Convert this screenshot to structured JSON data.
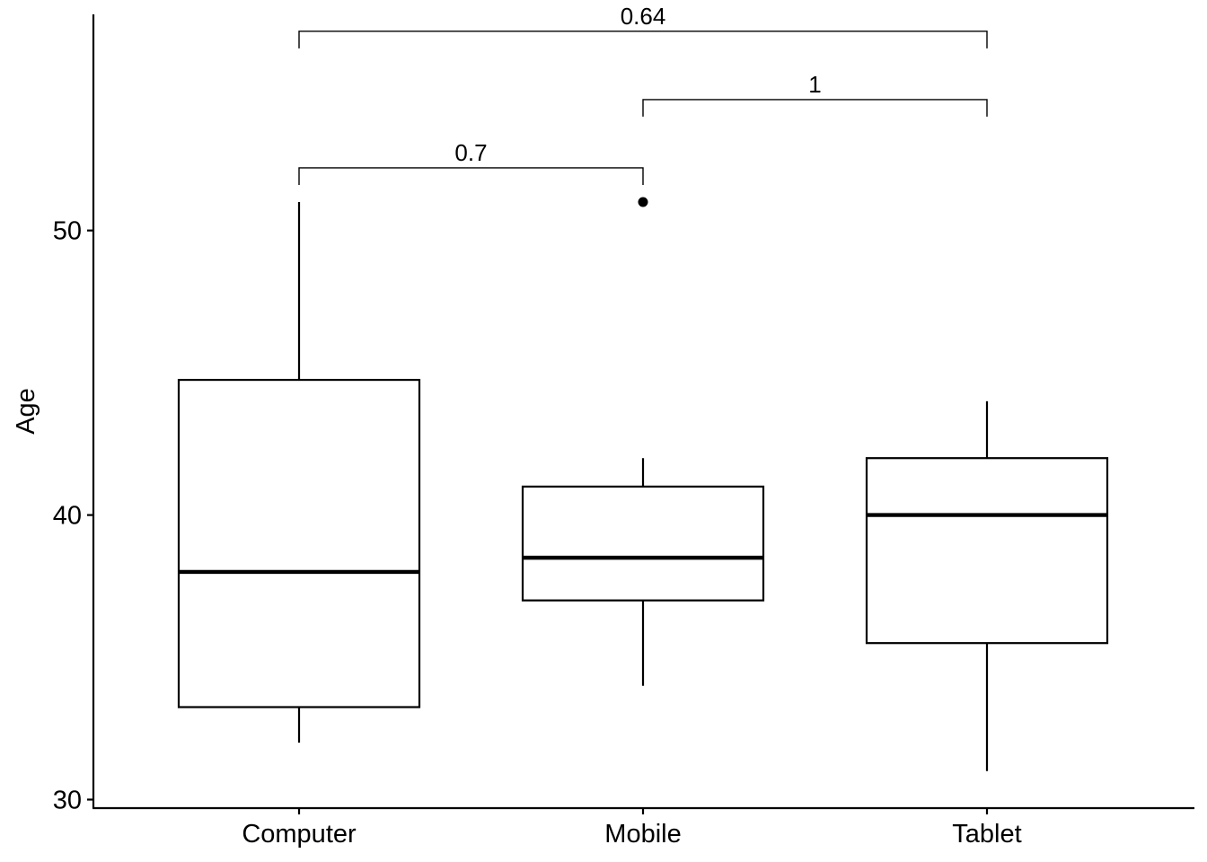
{
  "chart_data": {
    "type": "boxplot",
    "title": "",
    "xlabel": "",
    "ylabel": "Age",
    "ylim": [
      29.7,
      58.1
    ],
    "yticks": [
      30,
      40,
      50
    ],
    "categories": [
      "Computer",
      "Mobile",
      "Tablet"
    ],
    "boxes": [
      {
        "category": "Computer",
        "whisker_low": 32,
        "q1": 33.25,
        "median": 38,
        "q3": 44.75,
        "whisker_high": 51,
        "outliers": []
      },
      {
        "category": "Mobile",
        "whisker_low": 34,
        "q1": 37,
        "median": 38.5,
        "q3": 41,
        "whisker_high": 42,
        "outliers": [
          51
        ]
      },
      {
        "category": "Tablet",
        "whisker_low": 31,
        "q1": 35.5,
        "median": 40,
        "q3": 42,
        "whisker_high": 44,
        "outliers": []
      }
    ],
    "comparisons": [
      {
        "group1": "Computer",
        "group2": "Mobile",
        "p_label": "0.7",
        "bracket_y": 52.2,
        "tip_y": 51.6
      },
      {
        "group1": "Mobile",
        "group2": "Tablet",
        "p_label": "1",
        "bracket_y": 54.6,
        "tip_y": 54.0
      },
      {
        "group1": "Computer",
        "group2": "Tablet",
        "p_label": "0.64",
        "bracket_y": 57.0,
        "tip_y": 56.4
      }
    ],
    "grid": false,
    "colors": {
      "box_fill": "#ffffff",
      "stroke": "#000000"
    }
  }
}
